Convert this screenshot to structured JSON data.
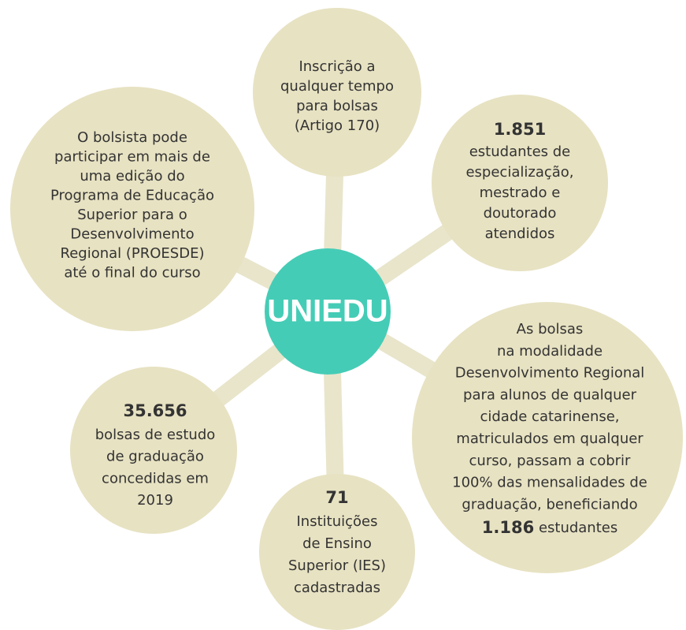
{
  "center": "UNIEDU",
  "nodes": [
    {
      "lines": [
        "Inscrição a",
        "qualquer tempo",
        "para bolsas",
        "(Artigo 170)"
      ]
    },
    {
      "number": "1.851",
      "lines": [
        "estudantes de",
        "especialização,",
        "mestrado e",
        "doutorado",
        "atendidos"
      ]
    },
    {
      "lines": [
        "O bolsista pode",
        "participar em mais de",
        "uma edição do",
        "Programa de Educação",
        "Superior para o",
        "Desenvolvimento",
        "Regional (PROESDE)",
        "até o final do curso"
      ]
    },
    {
      "lines": [
        "As bolsas",
        "na modalidade",
        "Desenvolvimento Regional",
        "para alunos de qualquer",
        "cidade catarinense,",
        "matriculados em qualquer",
        "curso, passam a cobrir",
        "100% das mensalidades de",
        "graduação, beneficiando"
      ],
      "closing_number": "1.186",
      "closing_text": "estudantes"
    },
    {
      "number": "35.656",
      "lines": [
        "bolsas de estudo",
        "de graduação",
        "concedidas em",
        "2019"
      ]
    },
    {
      "number": "71",
      "lines": [
        "Instituições",
        "de Ensino",
        "Superior (IES)",
        "cadastradas"
      ]
    }
  ]
}
